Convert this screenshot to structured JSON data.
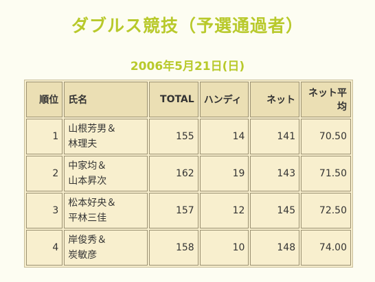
{
  "title": "ダブルス競技（予選通過者）",
  "date": "2006年5月21日(日)",
  "table": {
    "headers": [
      "順位",
      "氏名",
      "TOTAL",
      "ハンディ",
      "ネット",
      "ネット平均"
    ],
    "rows": [
      {
        "rank": "1",
        "name1": "山根芳男＆",
        "name2": "林理夫",
        "total": "155",
        "handicap": "14",
        "net": "141",
        "net_avg": "70.50"
      },
      {
        "rank": "2",
        "name1": "中家均＆",
        "name2": "山本昇次",
        "total": "162",
        "handicap": "19",
        "net": "143",
        "net_avg": "71.50"
      },
      {
        "rank": "3",
        "name1": "松本好央＆",
        "name2": "平林三佳",
        "total": "157",
        "handicap": "12",
        "net": "145",
        "net_avg": "72.50"
      },
      {
        "rank": "4",
        "name1": "岸俊秀＆",
        "name2": "炭敏彦",
        "total": "158",
        "handicap": "10",
        "net": "148",
        "net_avg": "74.00"
      }
    ]
  }
}
